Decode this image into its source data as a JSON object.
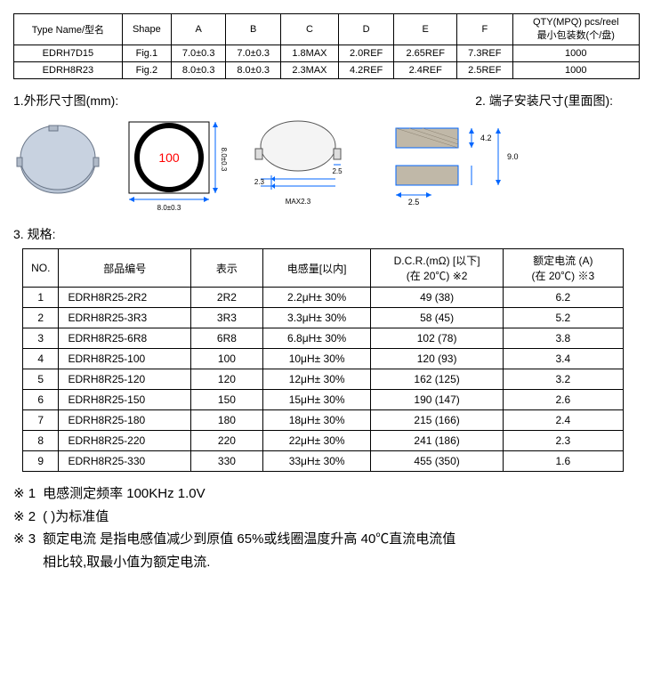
{
  "table1": {
    "headers": [
      "Type Name/型名",
      "Shape",
      "A",
      "B",
      "C",
      "D",
      "E",
      "F",
      "QTY(MPQ) pcs/reel\n最小包装数(个/盘)"
    ],
    "rows": [
      [
        "EDRH7D15",
        "Fig.1",
        "7.0±0.3",
        "7.0±0.3",
        "1.8MAX",
        "2.0REF",
        "2.65REF",
        "7.3REF",
        "1000"
      ],
      [
        "EDRH8R23",
        "Fig.2",
        "8.0±0.3",
        "8.0±0.3",
        "2.3MAX",
        "4.2REF",
        "2.4REF",
        "2.5REF",
        "1000"
      ]
    ]
  },
  "section1_left": "1.外形尺寸图(mm):",
  "section2_right": "2. 端子安装尺寸(里面图):",
  "drawing": {
    "dim_100": "100",
    "dim_w": "8.0±0.3",
    "dim_h": "8.0±0.3",
    "dim_th": "MAX2.3",
    "dim_tab": "2.3",
    "dim_tabw": "2.5",
    "pad_w": "2.5",
    "pad_h": "4.2",
    "pad_total": "9.0"
  },
  "section3": "3. 规格:",
  "spec": {
    "headers": [
      "NO.",
      "部品编号",
      "表示",
      "电感量[以内]",
      "D.C.R.(mΩ) [以下]\n(在 20℃)   ※2",
      "额定电流 (A)\n(在 20℃) ※3"
    ],
    "rows": [
      [
        "1",
        "EDRH8R25-2R2",
        "2R2",
        "2.2μH± 30%",
        "49 (38)",
        "6.2"
      ],
      [
        "2",
        "EDRH8R25-3R3",
        "3R3",
        "3.3μH± 30%",
        "58 (45)",
        "5.2"
      ],
      [
        "3",
        "EDRH8R25-6R8",
        "6R8",
        "6.8μH± 30%",
        "102 (78)",
        "3.8"
      ],
      [
        "4",
        "EDRH8R25-100",
        "100",
        "10μH± 30%",
        "120 (93)",
        "3.4"
      ],
      [
        "5",
        "EDRH8R25-120",
        "120",
        "12μH± 30%",
        "162 (125)",
        "3.2"
      ],
      [
        "6",
        "EDRH8R25-150",
        "150",
        "15μH± 30%",
        "190 (147)",
        "2.6"
      ],
      [
        "7",
        "EDRH8R25-180",
        "180",
        "18μH± 30%",
        "215 (166)",
        "2.4"
      ],
      [
        "8",
        "EDRH8R25-220",
        "220",
        "22μH± 30%",
        "241 (186)",
        "2.3"
      ],
      [
        "9",
        "EDRH8R25-330",
        "330",
        "33μH± 30%",
        "455 (350)",
        "1.6"
      ]
    ]
  },
  "notes": {
    "n1_mark": "※ 1",
    "n1_text": "电感测定频率   100KHz   1.0V",
    "n2_mark": "※ 2",
    "n2_text": "(   )为标准值",
    "n3_mark": "※ 3",
    "n3_text1": "额定电流  是指电感值减少到原值 65%或线圈温度升高 40℃直流电流值",
    "n3_text2": "相比较,取最小值为额定电流."
  },
  "colors": {
    "dim_blue": "#0066ff",
    "dim_red": "#ff0000",
    "part_fill": "#b8c4d4",
    "pad_fill": "#c0b8a8"
  }
}
